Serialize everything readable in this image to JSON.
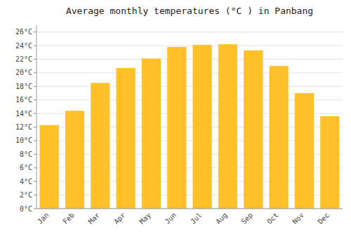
{
  "chart_data": {
    "type": "bar",
    "title": "Average monthly temperatures (°C ) in Panbang",
    "categories": [
      "Jan",
      "Feb",
      "Mar",
      "Apr",
      "May",
      "Jun",
      "Jul",
      "Aug",
      "Sep",
      "Oct",
      "Nov",
      "Dec"
    ],
    "values": [
      12.3,
      14.4,
      18.5,
      20.7,
      22.1,
      23.8,
      24.1,
      24.2,
      23.3,
      21.0,
      17.0,
      13.6
    ],
    "color": "#FFC02A",
    "ylim": [
      0,
      27
    ],
    "yticks": [
      {
        "value": 0,
        "label": "0°C"
      },
      {
        "value": 2,
        "label": "2°C"
      },
      {
        "value": 4,
        "label": "4°C"
      },
      {
        "value": 6,
        "label": "6°C"
      },
      {
        "value": 8,
        "label": "8°C"
      },
      {
        "value": 10,
        "label": "10°C"
      },
      {
        "value": 12,
        "label": "12°C"
      },
      {
        "value": 14,
        "label": "14°C"
      },
      {
        "value": 16,
        "label": "16°C"
      },
      {
        "value": 18,
        "label": "18°C"
      },
      {
        "value": 20,
        "label": "20°C"
      },
      {
        "value": 22,
        "label": "22°C"
      },
      {
        "value": 24,
        "label": "24°C"
      },
      {
        "value": 26,
        "label": "26°C"
      }
    ],
    "grid": true
  }
}
